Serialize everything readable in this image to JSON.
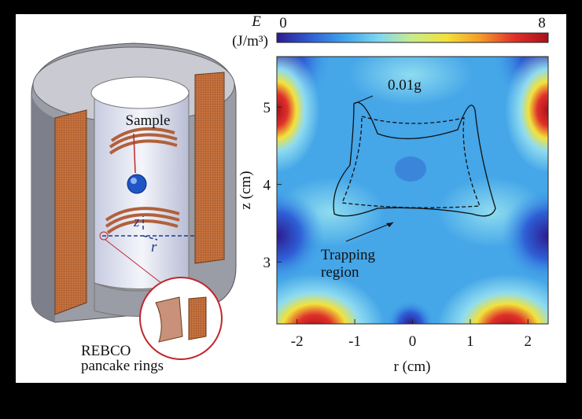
{
  "chart_data": {
    "type": "contour",
    "x_label": "r (cm)",
    "y_label": "z (cm)",
    "xlim": [
      -2.35,
      2.35
    ],
    "xticks": [
      -2,
      -1,
      0,
      1,
      2
    ],
    "ylim": [
      2.2,
      5.65
    ],
    "yticks": [
      3,
      4,
      5
    ],
    "colorbar": {
      "label": "E",
      "units": "(J/m³)",
      "clim": [
        0,
        8
      ],
      "ticks": [
        0,
        8
      ],
      "colors": [
        "#2c1b8f",
        "#2f5fd6",
        "#3fa4ea",
        "#7fd6f2",
        "#c9ec8a",
        "#f2e23a",
        "#f49a2a",
        "#e0302a",
        "#a8101c"
      ]
    },
    "annotations": [
      {
        "text": "0.01g"
      },
      {
        "lines": [
          "Trapping",
          "region"
        ]
      }
    ]
  },
  "diagram": {
    "labels": [
      "Sample",
      "z",
      "r"
    ],
    "caption": [
      "REBCO",
      "pancake rings"
    ]
  }
}
